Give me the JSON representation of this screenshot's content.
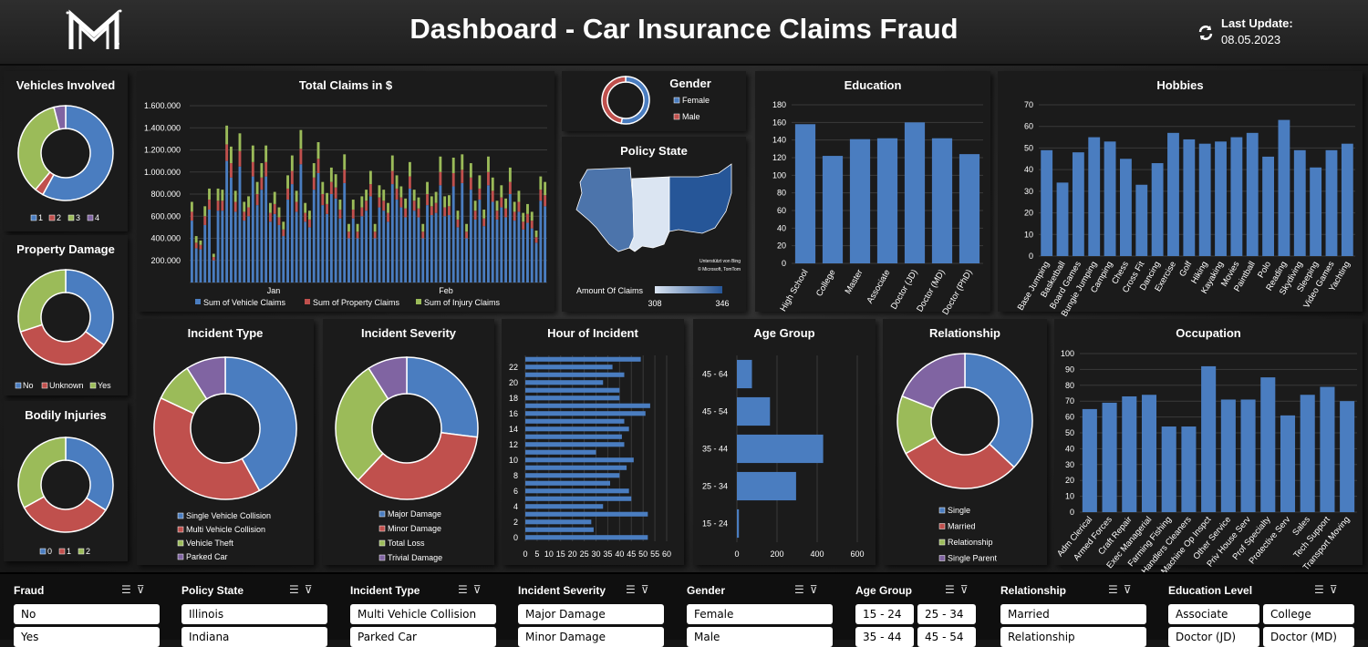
{
  "header": {
    "title": "Dashboard - Car Insurance Claims Fraud",
    "last_update_label": "Last Update:",
    "last_update_value": "08.05.2023",
    "logo_icon": "m-logo-icon",
    "refresh_icon": "refresh-icon"
  },
  "colors": {
    "blue": "#4a7dc0",
    "red": "#c0504d",
    "green": "#9bbb59",
    "purple": "#8064a2",
    "panel": "#1b1b1b"
  },
  "panels": {
    "vehicles_title": "Vehicles Involved",
    "property_title": "Property Damage",
    "bodily_title": "Bodily Injuries",
    "total_claims_title": "Total Claims in $",
    "gender_title": "Gender",
    "policy_state_title": "Policy State",
    "education_title": "Education",
    "hobbies_title": "Hobbies",
    "incident_type_title": "Incident Type",
    "incident_severity_title": "Incident Severity",
    "hour_title": "Hour of Incident",
    "age_title": "Age Group",
    "relationship_title": "Relationship",
    "occupation_title": "Occupation",
    "map_credit_1": "Unterstützt von Bing",
    "map_credit_2": "© Microsoft, TomTom",
    "map_legend_label": "Amount Of Claims",
    "map_legend_min": "308",
    "map_legend_max": "346"
  },
  "chart_data": [
    {
      "id": "vehicles",
      "type": "pie",
      "donut": true,
      "categories": [
        "1",
        "2",
        "3",
        "4"
      ],
      "values": [
        58,
        3,
        35,
        4
      ],
      "colors": [
        "#4a7dc0",
        "#c0504d",
        "#9bbb59",
        "#8064a2"
      ]
    },
    {
      "id": "property",
      "type": "pie",
      "donut": true,
      "categories": [
        "No",
        "Unknown",
        "Yes"
      ],
      "values": [
        35,
        35,
        30
      ],
      "colors": [
        "#4a7dc0",
        "#c0504d",
        "#9bbb59"
      ]
    },
    {
      "id": "bodily",
      "type": "pie",
      "donut": true,
      "categories": [
        "0",
        "1",
        "2"
      ],
      "values": [
        34,
        33,
        33
      ],
      "colors": [
        "#4a7dc0",
        "#c0504d",
        "#9bbb59"
      ]
    },
    {
      "id": "total_claims",
      "type": "bar",
      "stacked": true,
      "x_labels": [
        "Jan",
        "Feb"
      ],
      "ylim": [
        0,
        1600000
      ],
      "yticks": [
        "",
        "200.000",
        "400.000",
        "600.000",
        "800.000",
        "1.000.000",
        "1.200.000",
        "1.400.000",
        "1.600.000"
      ],
      "series": [
        {
          "name": "Sum of Vehicle Claims",
          "values": [
            560000,
            310000,
            300000,
            520000,
            660000,
            200000,
            650000,
            650000,
            1100000,
            950000,
            640000,
            1050000,
            560000,
            600000,
            960000,
            700000,
            840000,
            960000,
            550000,
            620000,
            520000,
            420000,
            750000,
            890000,
            640000,
            1070000,
            550000,
            500000,
            840000,
            990000,
            700000,
            620000,
            800000,
            760000,
            580000,
            900000,
            400000,
            580000,
            400000,
            600000,
            650000,
            780000,
            400000,
            680000,
            650000,
            550000,
            890000,
            750000,
            680000,
            590000,
            850000,
            650000,
            590000,
            400000,
            700000,
            610000,
            630000,
            880000,
            600000,
            610000,
            870000,
            500000,
            900000,
            400000,
            840000,
            570000,
            750000,
            510000,
            880000,
            730000,
            570000,
            680000,
            590000,
            800000,
            560000,
            640000,
            480000,
            540000,
            490000,
            360000,
            740000,
            690000
          ]
        },
        {
          "name": "Sum of Property Claims",
          "values": [
            80000,
            50000,
            40000,
            80000,
            90000,
            30000,
            90000,
            90000,
            150000,
            130000,
            90000,
            140000,
            80000,
            80000,
            130000,
            100000,
            110000,
            130000,
            80000,
            90000,
            70000,
            60000,
            100000,
            120000,
            90000,
            140000,
            80000,
            70000,
            110000,
            130000,
            100000,
            90000,
            110000,
            100000,
            80000,
            120000,
            60000,
            80000,
            60000,
            80000,
            90000,
            110000,
            60000,
            90000,
            90000,
            80000,
            120000,
            100000,
            90000,
            80000,
            110000,
            90000,
            80000,
            60000,
            100000,
            80000,
            90000,
            120000,
            80000,
            80000,
            120000,
            70000,
            120000,
            60000,
            110000,
            80000,
            100000,
            70000,
            120000,
            100000,
            80000,
            90000,
            80000,
            110000,
            80000,
            90000,
            70000,
            80000,
            70000,
            50000,
            100000,
            100000
          ]
        },
        {
          "name": "Sum of Injury Claims",
          "values": [
            90000,
            60000,
            40000,
            90000,
            100000,
            30000,
            110000,
            100000,
            170000,
            150000,
            100000,
            160000,
            90000,
            100000,
            150000,
            110000,
            130000,
            150000,
            90000,
            110000,
            90000,
            70000,
            120000,
            140000,
            100000,
            170000,
            90000,
            80000,
            130000,
            150000,
            110000,
            100000,
            130000,
            120000,
            90000,
            140000,
            70000,
            90000,
            70000,
            100000,
            100000,
            120000,
            70000,
            110000,
            100000,
            90000,
            140000,
            120000,
            100000,
            90000,
            130000,
            100000,
            100000,
            70000,
            110000,
            90000,
            100000,
            140000,
            100000,
            100000,
            140000,
            80000,
            140000,
            70000,
            130000,
            90000,
            120000,
            80000,
            140000,
            120000,
            90000,
            110000,
            90000,
            130000,
            90000,
            100000,
            80000,
            90000,
            80000,
            60000,
            120000,
            120000
          ]
        }
      ]
    },
    {
      "id": "gender",
      "type": "pie",
      "donut": true,
      "categories": [
        "Female",
        "Male"
      ],
      "values": [
        53,
        47
      ],
      "colors": [
        "#4a7dc0",
        "#c0504d"
      ]
    },
    {
      "id": "education",
      "type": "bar",
      "categories": [
        "High School",
        "College",
        "Master",
        "Associate",
        "Doctor (JD)",
        "Doctor (MD)",
        "Doctor (PhD)"
      ],
      "values": [
        158,
        122,
        141,
        142,
        160,
        142,
        124
      ],
      "ylim": [
        0,
        180
      ],
      "yticks": [
        0,
        20,
        40,
        60,
        80,
        100,
        120,
        140,
        160,
        180
      ]
    },
    {
      "id": "hobbies",
      "type": "bar",
      "categories": [
        "Base Jumping",
        "Basketball",
        "Board Games",
        "Bungie Jumping",
        "Camping",
        "Chess",
        "Cross Fit",
        "Dancing",
        "Exercise",
        "Golf",
        "Hiking",
        "Kayaking",
        "Movies",
        "Paintball",
        "Polo",
        "Reading",
        "Skydiving",
        "Sleeping",
        "Video Games",
        "Yachting"
      ],
      "values": [
        49,
        34,
        48,
        55,
        53,
        45,
        33,
        43,
        57,
        54,
        52,
        53,
        55,
        57,
        46,
        63,
        49,
        41,
        49,
        52
      ],
      "ylim": [
        0,
        70
      ],
      "yticks": [
        0,
        10,
        20,
        30,
        40,
        50,
        60,
        70
      ]
    },
    {
      "id": "incident_type",
      "type": "pie",
      "donut": true,
      "categories": [
        "Single Vehicle Collision",
        "Multi Vehicle Collision",
        "Vehicle Theft",
        "Parked Car"
      ],
      "values": [
        42,
        40,
        9,
        9
      ],
      "colors": [
        "#4a7dc0",
        "#c0504d",
        "#9bbb59",
        "#8064a2"
      ]
    },
    {
      "id": "incident_severity",
      "type": "pie",
      "donut": true,
      "categories": [
        "Major Damage",
        "Minor Damage",
        "Total Loss",
        "Trivial Damage"
      ],
      "values": [
        27,
        35,
        29,
        9
      ],
      "colors": [
        "#4a7dc0",
        "#c0504d",
        "#9bbb59",
        "#8064a2"
      ]
    },
    {
      "id": "hour",
      "type": "bar",
      "horizontal": true,
      "categories": [
        "0",
        "1",
        "2",
        "3",
        "4",
        "5",
        "6",
        "7",
        "8",
        "9",
        "10",
        "11",
        "12",
        "13",
        "14",
        "15",
        "16",
        "17",
        "18",
        "19",
        "20",
        "21",
        "22",
        "23"
      ],
      "values": [
        52,
        29,
        28,
        52,
        33,
        45,
        44,
        36,
        40,
        43,
        46,
        30,
        42,
        41,
        44,
        42,
        51,
        53,
        40,
        40,
        33,
        42,
        37,
        49
      ],
      "xlim": [
        0,
        60
      ],
      "xticks": [
        0,
        5,
        10,
        15,
        20,
        25,
        30,
        35,
        40,
        45,
        50,
        55,
        60
      ],
      "ytick_labels": [
        "0",
        "2",
        "4",
        "6",
        "8",
        "10",
        "12",
        "14",
        "16",
        "18",
        "20",
        "22"
      ]
    },
    {
      "id": "age_group",
      "type": "bar",
      "horizontal": true,
      "categories": [
        "15 - 24",
        "25 - 34",
        "35 - 44",
        "45 - 54",
        "45 - 64"
      ],
      "values": [
        10,
        295,
        430,
        165,
        75
      ],
      "xlim": [
        0,
        600
      ],
      "xticks": [
        0,
        200,
        400,
        600
      ]
    },
    {
      "id": "relationship",
      "type": "pie",
      "donut": true,
      "categories": [
        "Single",
        "Married",
        "Relationship",
        "Single Parent"
      ],
      "values": [
        37,
        30,
        14,
        19
      ],
      "colors": [
        "#4a7dc0",
        "#c0504d",
        "#9bbb59",
        "#8064a2"
      ]
    },
    {
      "id": "occupation",
      "type": "bar",
      "categories": [
        "Adm Clerical",
        "Armed Forces",
        "Craft Repair",
        "Exec Managerial",
        "Farming Fishing",
        "Handlers Cleaners",
        "Machine Op Inspct",
        "Other Service",
        "Priv House Serv",
        "Prof Specialty",
        "Protective Serv",
        "Sales",
        "Tech Support",
        "Transport Moving"
      ],
      "values": [
        65,
        69,
        73,
        74,
        54,
        54,
        92,
        71,
        71,
        85,
        61,
        74,
        79,
        70
      ],
      "ylim": [
        0,
        100
      ],
      "yticks": [
        0,
        10,
        20,
        30,
        40,
        50,
        60,
        70,
        80,
        90,
        100
      ]
    },
    {
      "id": "policy_state",
      "type": "map",
      "categories": [
        "Illinois",
        "Indiana",
        "Ohio"
      ],
      "values": [
        338,
        308,
        346
      ]
    }
  ],
  "filters": {
    "fraud": {
      "label": "Fraud",
      "items": [
        "No",
        "Yes"
      ]
    },
    "policy_state": {
      "label": "Policy State",
      "items": [
        "Illinois",
        "Indiana"
      ]
    },
    "incident_type": {
      "label": "Incident Type",
      "items": [
        "Multi Vehicle Collision",
        "Parked Car"
      ]
    },
    "incident_severity": {
      "label": "Incident Severity",
      "items": [
        "Major Damage",
        "Minor Damage"
      ]
    },
    "gender": {
      "label": "Gender",
      "items": [
        "Female",
        "Male"
      ]
    },
    "age_group": {
      "label": "Age Group",
      "items": [
        "15 - 24",
        "25 - 34",
        "35 - 44",
        "45 - 54"
      ]
    },
    "relationship": {
      "label": "Relationship",
      "items": [
        "Married",
        "Relationship"
      ]
    },
    "education": {
      "label": "Education Level",
      "items": [
        "Associate",
        "College",
        "Doctor (JD)",
        "Doctor (MD)"
      ]
    },
    "multi_select_icon": "multi-select-icon",
    "clear_filter_icon": "clear-filter-icon"
  }
}
